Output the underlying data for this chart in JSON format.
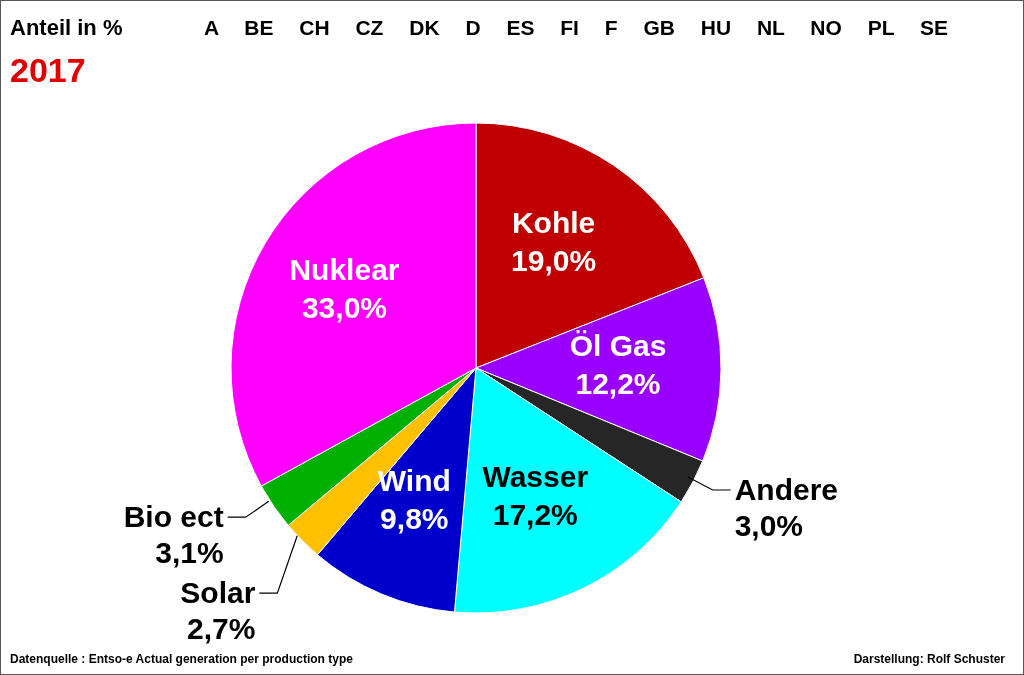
{
  "chart_data": {
    "type": "pie",
    "title": "Anteil in %",
    "subtitle": "2017",
    "categories": [
      "Kohle",
      "Öl Gas",
      "Andere",
      "Wasser",
      "Wind",
      "Solar",
      "Bio ect",
      "Nuklear"
    ],
    "values": [
      19.0,
      12.2,
      3.0,
      17.2,
      9.8,
      2.7,
      3.1,
      33.0
    ],
    "colors": [
      "#c00000",
      "#9900ff",
      "#262626",
      "#00ffff",
      "#0000cc",
      "#ffc000",
      "#00b000",
      "#ff00ff"
    ],
    "value_labels": [
      "19,0%",
      "12,2%",
      "3,0%",
      "17,2%",
      "9,8%",
      "2,7%",
      "3,1%",
      "33,0%"
    ],
    "annotations": [
      "A BE CH CZ DK D ES FI F GB HU NL NO PL SE",
      "Datenquelle : Entso-e Actual generation per production type",
      "Darstellung: Rolf Schuster"
    ]
  }
}
